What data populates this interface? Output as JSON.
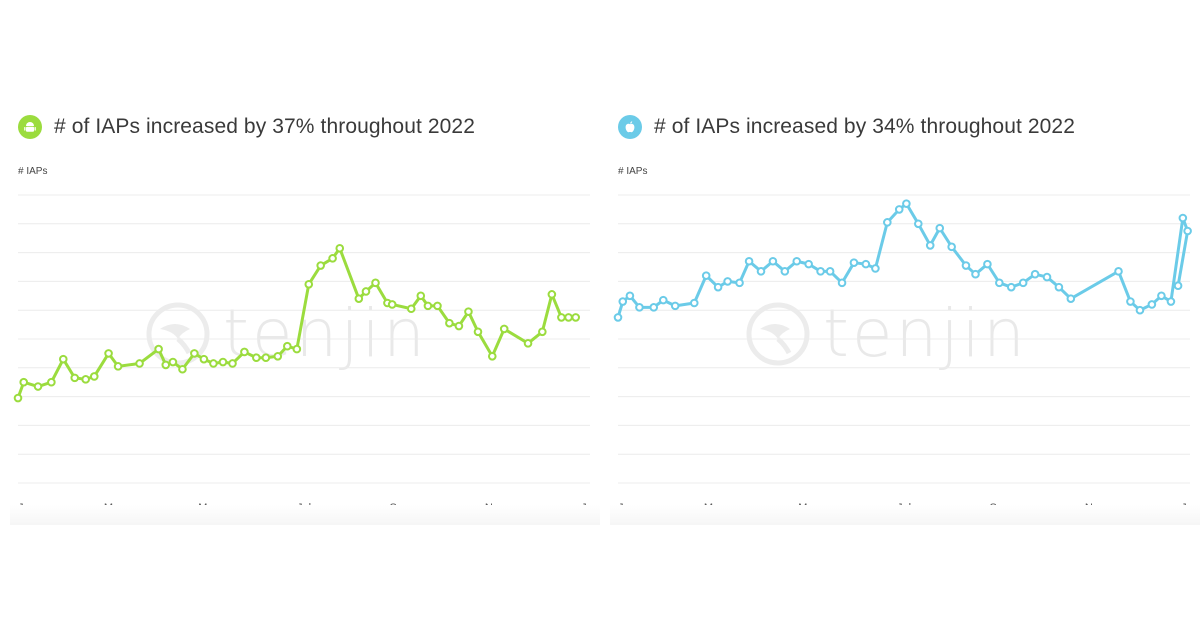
{
  "panels": [
    {
      "title": "# of IAPs increased by 37% throughout 2022",
      "badge_icon": "android-icon",
      "ylabel": "# IAPs",
      "watermark": "tenjin"
    },
    {
      "title": "# of IAPs increased by 34% throughout 2022",
      "badge_icon": "apple-icon",
      "ylabel": "# IAPs",
      "watermark": "tenjin"
    }
  ],
  "chart_data": [
    {
      "type": "line",
      "title": "# of IAPs increased by 37% throughout 2022",
      "ylabel": "# IAPs",
      "color": "#9bdc3e",
      "x_tick_labels": [
        "Jan",
        "Mar",
        "May",
        "Jul",
        "Sep",
        "Nov",
        "Jan"
      ],
      "x_range": [
        0,
        12
      ],
      "ylim": [
        0,
        10
      ],
      "grid": true,
      "x": [
        0,
        0.12,
        0.42,
        0.7,
        0.95,
        1.19,
        1.42,
        1.6,
        1.9,
        2.1,
        2.55,
        2.95,
        3.1,
        3.25,
        3.45,
        3.7,
        3.9,
        4.1,
        4.3,
        4.5,
        4.75,
        5.0,
        5.2,
        5.45,
        5.65,
        5.85,
        6.1,
        6.35,
        6.6,
        6.75,
        7.15,
        7.3,
        7.5,
        7.75,
        7.85,
        8.25,
        8.45,
        8.6,
        8.8,
        9.05,
        9.25,
        9.45,
        9.65,
        9.95,
        10.2,
        10.7,
        11.0,
        11.2,
        11.4,
        11.55,
        11.7
      ],
      "y": [
        2.95,
        3.5,
        3.35,
        3.5,
        4.3,
        3.65,
        3.6,
        3.7,
        4.5,
        4.05,
        4.15,
        4.65,
        4.1,
        4.2,
        3.95,
        4.5,
        4.3,
        4.15,
        4.2,
        4.15,
        4.55,
        4.35,
        4.35,
        4.4,
        4.75,
        4.65,
        6.9,
        7.55,
        7.8,
        8.15,
        6.4,
        6.65,
        6.95,
        6.25,
        6.2,
        6.05,
        6.5,
        6.15,
        6.15,
        5.55,
        5.45,
        5.95,
        5.25,
        4.4,
        5.35,
        4.85,
        5.25,
        6.55,
        5.75,
        5.75,
        5.75
      ]
    },
    {
      "type": "line",
      "title": "# of IAPs increased by 34% throughout 2022",
      "ylabel": "# IAPs",
      "color": "#6bcbe8",
      "x_tick_labels": [
        "Jan",
        "Mar",
        "May",
        "Jul",
        "Sep",
        "Nov",
        "Jan"
      ],
      "x_range": [
        0,
        12
      ],
      "ylim": [
        0,
        10
      ],
      "grid": true,
      "x": [
        0,
        0.1,
        0.25,
        0.45,
        0.75,
        0.95,
        1.2,
        1.6,
        1.85,
        2.1,
        2.3,
        2.55,
        2.75,
        3.0,
        3.25,
        3.5,
        3.75,
        4.0,
        4.25,
        4.45,
        4.7,
        4.95,
        5.2,
        5.4,
        5.65,
        5.9,
        6.05,
        6.3,
        6.55,
        6.75,
        7.0,
        7.3,
        7.5,
        7.75,
        8.0,
        8.25,
        8.5,
        8.75,
        9.0,
        9.25,
        9.5,
        10.5,
        10.75,
        10.95,
        11.2,
        11.4,
        11.6,
        11.85,
        11.95,
        11.75
      ],
      "y": [
        5.75,
        6.3,
        6.5,
        6.1,
        6.1,
        6.35,
        6.15,
        6.25,
        7.2,
        6.8,
        7.0,
        6.95,
        7.7,
        7.35,
        7.7,
        7.35,
        7.7,
        7.6,
        7.35,
        7.35,
        6.95,
        7.65,
        7.6,
        7.45,
        9.05,
        9.5,
        9.7,
        9.0,
        8.25,
        8.85,
        8.2,
        7.55,
        7.25,
        7.6,
        6.95,
        6.8,
        6.95,
        7.25,
        7.15,
        6.8,
        6.4,
        7.35,
        6.3,
        6.0,
        6.2,
        6.5,
        6.3,
        9.2,
        8.75,
        6.85
      ]
    }
  ]
}
